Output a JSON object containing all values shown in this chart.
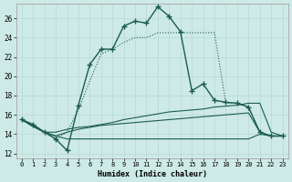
{
  "xlabel": "Humidex (Indice chaleur)",
  "ylabel": "",
  "background_color": "#ceeae6",
  "line_color": "#1a5c50",
  "xlim": [
    -0.5,
    23.5
  ],
  "ylim": [
    11.5,
    27.5
  ],
  "xticks": [
    0,
    1,
    2,
    3,
    4,
    5,
    6,
    7,
    8,
    9,
    10,
    11,
    12,
    13,
    14,
    15,
    16,
    17,
    18,
    19,
    20,
    21,
    22,
    23
  ],
  "yticks": [
    12,
    14,
    16,
    18,
    20,
    22,
    24,
    26
  ],
  "grid_color": "#b8d8d4",
  "series": [
    {
      "x": [
        0,
        1,
        2,
        3,
        4,
        5,
        6,
        7,
        8,
        9,
        10,
        11,
        12,
        13,
        14,
        15,
        16,
        17,
        18,
        19,
        20,
        21,
        22,
        23
      ],
      "y": [
        15.5,
        15.0,
        14.2,
        13.5,
        12.3,
        17.0,
        21.2,
        22.8,
        22.8,
        25.2,
        25.7,
        25.5,
        27.2,
        26.2,
        24.6,
        18.5,
        19.2,
        17.5,
        17.3,
        17.2,
        16.8,
        14.2,
        13.8,
        13.8
      ],
      "style": "-",
      "marker": "+",
      "markersize": 4,
      "linewidth": 1.0
    },
    {
      "x": [
        0,
        1,
        2,
        3,
        4,
        5,
        6,
        7,
        8,
        9,
        10,
        11,
        12,
        13,
        14,
        15,
        16,
        17,
        18,
        19,
        20,
        21,
        22,
        23
      ],
      "y": [
        15.5,
        15.0,
        14.2,
        13.5,
        14.2,
        16.5,
        19.5,
        22.3,
        22.8,
        23.5,
        24.0,
        24.0,
        24.5,
        24.5,
        24.5,
        24.5,
        24.5,
        24.5,
        17.2,
        17.2,
        16.8,
        14.2,
        13.8,
        13.8
      ],
      "style": ":",
      "marker": null,
      "markersize": 0,
      "linewidth": 0.8
    },
    {
      "x": [
        0,
        1,
        2,
        3,
        4,
        5,
        6,
        7,
        8,
        9,
        10,
        11,
        12,
        13,
        14,
        15,
        16,
        17,
        18,
        19,
        20,
        21,
        22,
        23
      ],
      "y": [
        15.5,
        14.8,
        14.2,
        14.2,
        14.5,
        14.7,
        14.8,
        15.0,
        15.2,
        15.5,
        15.7,
        15.9,
        16.1,
        16.3,
        16.4,
        16.5,
        16.6,
        16.8,
        16.9,
        17.0,
        17.2,
        17.2,
        14.2,
        13.8
      ],
      "style": "-",
      "marker": null,
      "markersize": 0,
      "linewidth": 0.8
    },
    {
      "x": [
        0,
        1,
        2,
        3,
        4,
        5,
        6,
        7,
        8,
        9,
        10,
        11,
        12,
        13,
        14,
        15,
        16,
        17,
        18,
        19,
        20,
        21,
        22,
        23
      ],
      "y": [
        15.5,
        14.8,
        14.2,
        13.8,
        14.2,
        14.5,
        14.7,
        14.9,
        15.0,
        15.1,
        15.2,
        15.3,
        15.4,
        15.5,
        15.6,
        15.7,
        15.8,
        15.9,
        16.0,
        16.1,
        16.2,
        14.2,
        13.8,
        13.8
      ],
      "style": "-",
      "marker": null,
      "markersize": 0,
      "linewidth": 0.8
    },
    {
      "x": [
        0,
        1,
        2,
        3,
        4,
        5,
        6,
        7,
        8,
        9,
        10,
        11,
        12,
        13,
        14,
        15,
        16,
        17,
        18,
        19,
        20,
        21,
        22,
        23
      ],
      "y": [
        15.5,
        14.8,
        14.2,
        13.8,
        13.5,
        13.5,
        13.5,
        13.5,
        13.5,
        13.5,
        13.5,
        13.5,
        13.5,
        13.5,
        13.5,
        13.5,
        13.5,
        13.5,
        13.5,
        13.5,
        13.5,
        14.0,
        13.8,
        13.8
      ],
      "style": "-",
      "marker": null,
      "markersize": 0,
      "linewidth": 0.8
    }
  ]
}
